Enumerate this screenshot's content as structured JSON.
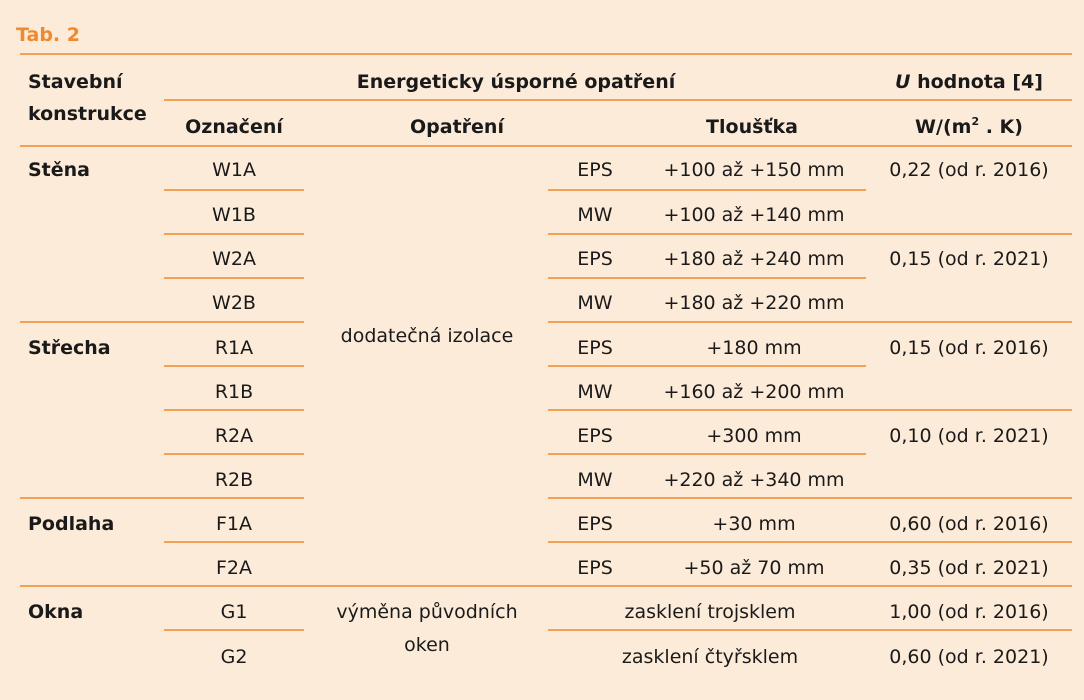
{
  "caption": "Tab. 2",
  "header": {
    "col1_line1": "Stavební",
    "col1_line2": "konstrukce",
    "group": "Energeticky úsporné opatření",
    "u_italic": "U",
    "u_rest": " hodnota [4]",
    "sub_oznaceni": "Označení",
    "sub_opatreni": "Opatření",
    "sub_tloustka": "Tloušťka",
    "unit_main": "W/(m",
    "unit_sup": "2",
    "unit_end": " . K)"
  },
  "groups": {
    "stena": "Stěna",
    "strecha": "Střecha",
    "podlaha": "Podlaha",
    "okna": "Okna"
  },
  "measures": {
    "insulation": "dodatečná izolace",
    "windows_line1": "výměna původních",
    "windows_line2": "oken"
  },
  "rows": [
    {
      "code": "W1A",
      "mat": "EPS",
      "thick": "+100 až +150 mm"
    },
    {
      "code": "W1B",
      "mat": "MW",
      "thick": "+100 až +140 mm"
    },
    {
      "code": "W2A",
      "mat": "EPS",
      "thick": "+180 až  +240 mm"
    },
    {
      "code": "W2B",
      "mat": "MW",
      "thick": "+180 až +220 mm"
    },
    {
      "code": "R1A",
      "mat": "EPS",
      "thick": "+180 mm"
    },
    {
      "code": "R1B",
      "mat": "MW",
      "thick": "+160 až +200 mm"
    },
    {
      "code": "R2A",
      "mat": "EPS",
      "thick": "+300 mm"
    },
    {
      "code": "R2B",
      "mat": "MW",
      "thick": "+220 až +340 mm"
    },
    {
      "code": "F1A",
      "mat": "EPS",
      "thick": "+30 mm"
    },
    {
      "code": "F2A",
      "mat": "EPS",
      "thick": "+50 až 70 mm"
    },
    {
      "code": "G1",
      "glazing": "zasklení trojsklem"
    },
    {
      "code": "G2",
      "glazing": "zasklení čtyřsklem"
    }
  ],
  "u_values": {
    "wall_2016": "0,22 (od r. 2016)",
    "wall_2021": "0,15 (od r. 2021)",
    "roof_2016": "0,15 (od r. 2016)",
    "roof_2021": "0,10 (od r. 2021)",
    "floor_2016": "0,60 (od r. 2016)",
    "floor_2021": "0,35 (od r. 2021)",
    "win_2016": "1,00 (od r. 2016)",
    "win_2021": "0,60 (od r. 2021)"
  }
}
